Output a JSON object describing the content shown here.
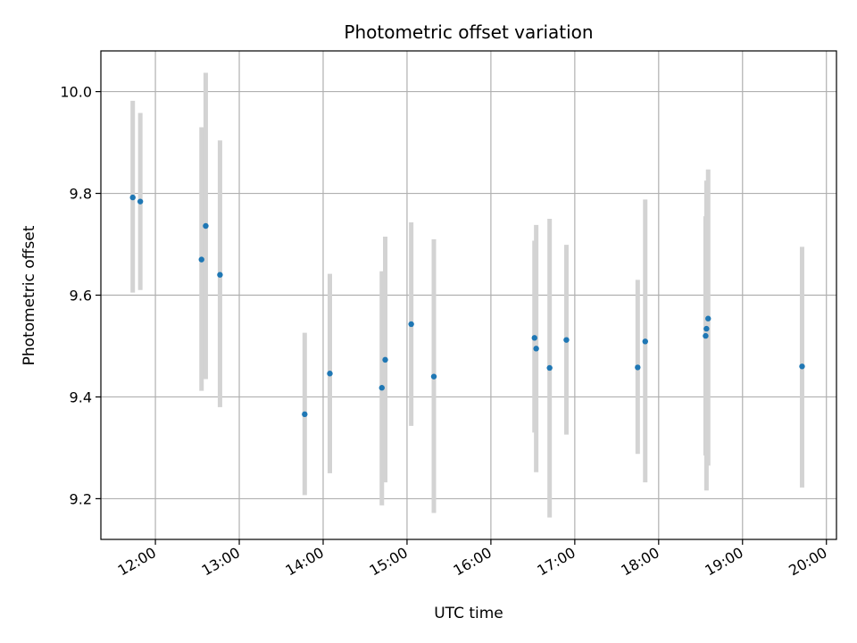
{
  "chart_data": {
    "type": "scatter",
    "title": "Photometric offset variation",
    "xlabel": "UTC time",
    "ylabel": "Photometric offset",
    "x_tick_labels": [
      "12:00",
      "13:00",
      "14:00",
      "15:00",
      "16:00",
      "17:00",
      "18:00",
      "19:00",
      "20:00"
    ],
    "x_tick_hours": [
      12,
      13,
      14,
      15,
      16,
      17,
      18,
      19,
      20
    ],
    "x_range_hours": [
      11.35,
      20.12
    ],
    "y_ticks": [
      9.2,
      9.4,
      9.6,
      9.8,
      10.0
    ],
    "y_tick_labels": [
      "9.2",
      "9.4",
      "9.6",
      "9.8",
      "10.0"
    ],
    "ylim": [
      9.12,
      10.08
    ],
    "grid": true,
    "colors": {
      "point": "#1f77b4",
      "errorbar": "#d3d3d3",
      "grid": "#b0b0b0"
    },
    "points": [
      {
        "x": 11.73,
        "y": 9.792,
        "lo": 9.605,
        "hi": 9.982
      },
      {
        "x": 11.82,
        "y": 9.784,
        "lo": 9.61,
        "hi": 9.958
      },
      {
        "x": 12.55,
        "y": 9.67,
        "lo": 9.412,
        "hi": 9.93
      },
      {
        "x": 12.6,
        "y": 9.736,
        "lo": 9.435,
        "hi": 10.037
      },
      {
        "x": 12.77,
        "y": 9.64,
        "lo": 9.38,
        "hi": 9.904
      },
      {
        "x": 13.78,
        "y": 9.366,
        "lo": 9.207,
        "hi": 9.526
      },
      {
        "x": 14.08,
        "y": 9.446,
        "lo": 9.25,
        "hi": 9.642
      },
      {
        "x": 14.7,
        "y": 9.418,
        "lo": 9.187,
        "hi": 9.647
      },
      {
        "x": 14.74,
        "y": 9.473,
        "lo": 9.232,
        "hi": 9.715
      },
      {
        "x": 15.05,
        "y": 9.543,
        "lo": 9.343,
        "hi": 9.743
      },
      {
        "x": 15.32,
        "y": 9.44,
        "lo": 9.172,
        "hi": 9.71
      },
      {
        "x": 16.52,
        "y": 9.516,
        "lo": 9.33,
        "hi": 9.707
      },
      {
        "x": 16.54,
        "y": 9.495,
        "lo": 9.252,
        "hi": 9.738
      },
      {
        "x": 16.7,
        "y": 9.457,
        "lo": 9.163,
        "hi": 9.75
      },
      {
        "x": 16.9,
        "y": 9.512,
        "lo": 9.326,
        "hi": 9.699
      },
      {
        "x": 17.75,
        "y": 9.458,
        "lo": 9.288,
        "hi": 9.63
      },
      {
        "x": 17.84,
        "y": 9.509,
        "lo": 9.232,
        "hi": 9.788
      },
      {
        "x": 18.56,
        "y": 9.52,
        "lo": 9.285,
        "hi": 9.755
      },
      {
        "x": 18.57,
        "y": 9.534,
        "lo": 9.216,
        "hi": 9.825
      },
      {
        "x": 18.59,
        "y": 9.554,
        "lo": 9.265,
        "hi": 9.847
      },
      {
        "x": 19.71,
        "y": 9.46,
        "lo": 9.222,
        "hi": 9.695
      }
    ]
  }
}
